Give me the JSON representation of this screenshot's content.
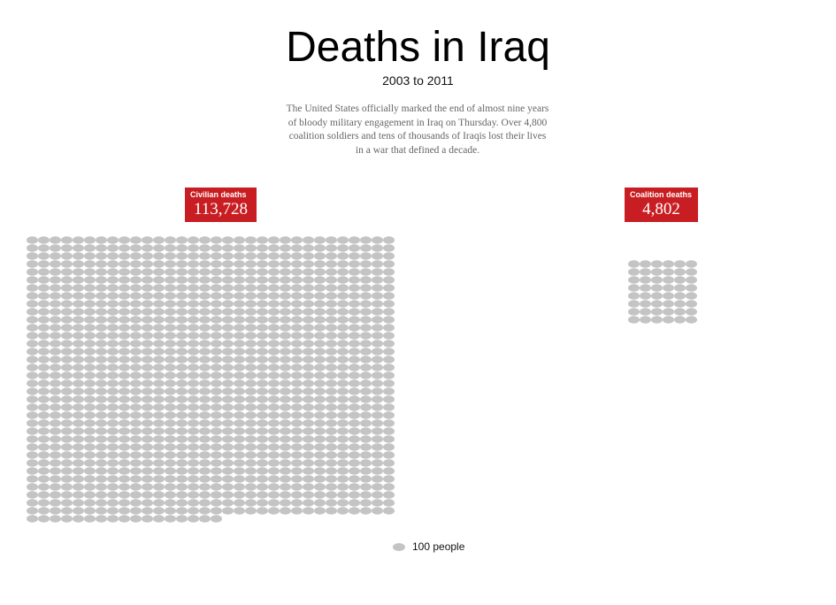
{
  "chart_data": {
    "type": "pictogram",
    "title": "Deaths in Iraq",
    "subtitle": "2003 to 2011",
    "description": "The United States officially marked the end of almost nine years of bloody military engagement in Iraq on Thursday. Over 4,800 coalition soldiers and tens of thousands of Iraqis lost their lives in a war that defined a decade.",
    "unit_label": "100 people",
    "unit_value": 100,
    "dot_color": "#c4c4c4",
    "label_color": "#c81e23",
    "series": [
      {
        "name": "Civilian deaths",
        "value_label": "113,728",
        "value": 113728,
        "dots": 1137
      },
      {
        "name": "Coalition deaths",
        "value_label": "4,802",
        "value": 4802,
        "dots": 48
      }
    ]
  }
}
